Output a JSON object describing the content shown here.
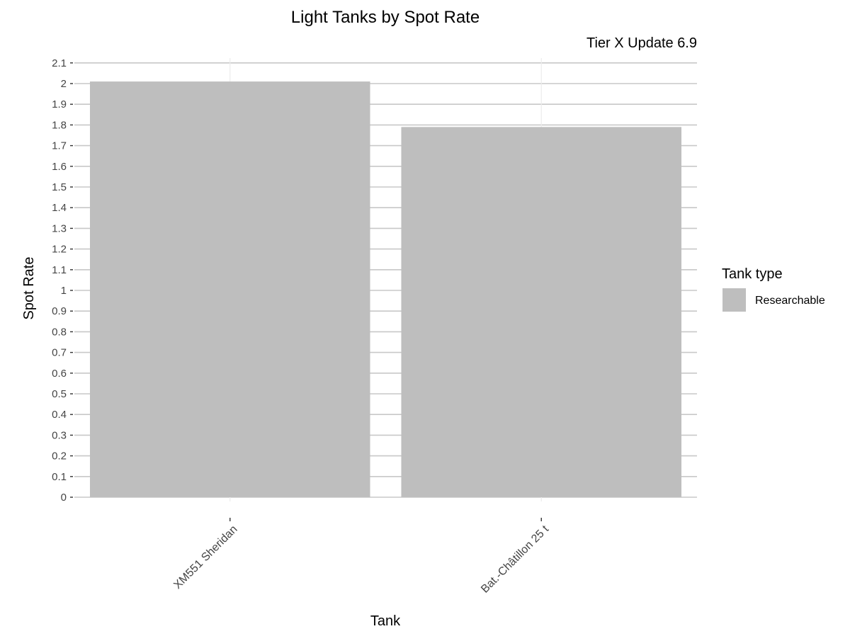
{
  "chart_data": {
    "type": "bar",
    "title": "Light Tanks by Spot Rate",
    "subtitle": "Tier X Update 6.9",
    "xlabel": "Tank",
    "ylabel": "Spot Rate",
    "categories": [
      "XM551 Sheridan",
      "Bat.-Châtillon 25 t"
    ],
    "series": [
      {
        "name": "Researchable",
        "values": [
          2.01,
          1.79
        ],
        "color": "#bebebe"
      }
    ],
    "ylim": [
      0,
      2.1
    ],
    "yticks": [
      0,
      0.1,
      0.2,
      0.3,
      0.4,
      0.5,
      0.6,
      0.7,
      0.8,
      0.9,
      1,
      1.1,
      1.2,
      1.3,
      1.4,
      1.5,
      1.6,
      1.7,
      1.8,
      1.9,
      2,
      2.1
    ],
    "grid": true,
    "legend": {
      "title": "Tank type",
      "placement": "right",
      "entries": [
        "Researchable"
      ]
    }
  }
}
